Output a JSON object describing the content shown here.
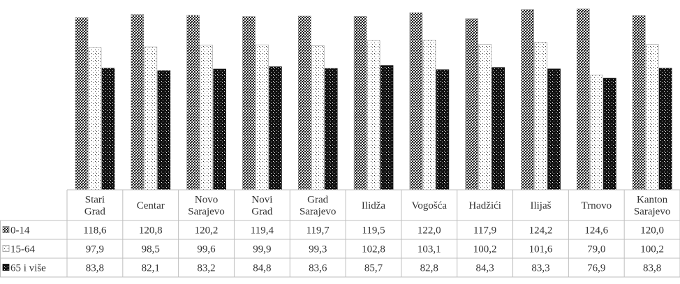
{
  "chart_data": {
    "type": "bar",
    "title": "",
    "xlabel": "",
    "ylabel": "",
    "ylim": [
      0,
      125
    ],
    "grid": false,
    "legend_placement": "data-table-left",
    "categories": [
      [
        "Stari",
        "Grad"
      ],
      [
        "Centar"
      ],
      [
        "Novo",
        "Sarajevo"
      ],
      [
        "Novi",
        "Grad"
      ],
      [
        "Grad",
        "Sarajevo"
      ],
      [
        "Ilidža"
      ],
      [
        "Vogošća"
      ],
      [
        "Hadžići"
      ],
      [
        "Ilijaš"
      ],
      [
        "Trnovo"
      ],
      [
        "Kanton",
        "Sarajevo"
      ]
    ],
    "series": [
      {
        "name": "0-14",
        "pattern": "dense-dots",
        "values": [
          118.6,
          120.8,
          120.2,
          119.4,
          119.7,
          119.5,
          122.0,
          117.9,
          124.2,
          124.6,
          120.0
        ],
        "labels": [
          "118,6",
          "120,8",
          "120,2",
          "119,4",
          "119,7",
          "119,5",
          "122,0",
          "117,9",
          "124,2",
          "124,6",
          "120,0"
        ]
      },
      {
        "name": "15-64",
        "pattern": "light-dots",
        "values": [
          97.9,
          98.5,
          99.6,
          99.9,
          99.3,
          102.8,
          103.1,
          100.2,
          101.6,
          79.0,
          100.2
        ],
        "labels": [
          "97,9",
          "98,5",
          "99,6",
          "99,9",
          "99,3",
          "102,8",
          "103,1",
          "100,2",
          "101,6",
          "79,0",
          "100,2"
        ]
      },
      {
        "name": "65 i više",
        "pattern": "dark-dots",
        "values": [
          83.8,
          82.1,
          83.2,
          84.8,
          83.6,
          85.7,
          82.8,
          84.3,
          83.3,
          76.9,
          83.8
        ],
        "labels": [
          "83,8",
          "82,1",
          "83,2",
          "84,8",
          "83,6",
          "85,7",
          "82,8",
          "84,3",
          "83,3",
          "76,9",
          "83,8"
        ]
      }
    ],
    "colors": {
      "border": "#bfbfbf",
      "text": "#333333",
      "dark": "#111111",
      "light": "#ffffff"
    }
  }
}
